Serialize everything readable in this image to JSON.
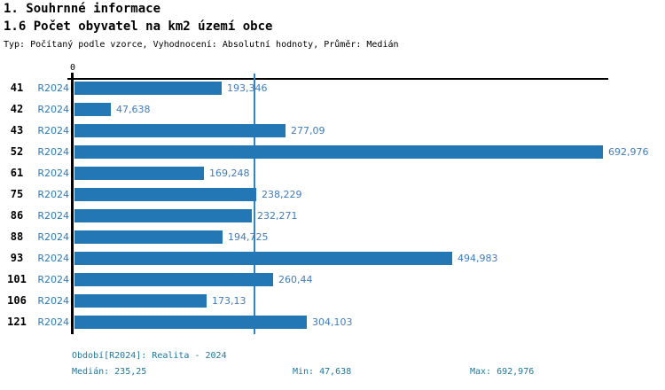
{
  "header": {
    "title1": "1. Souhrnné informace",
    "title2": "1.6 Počet obyvatel na km2 území obce",
    "subtitle": "Typ: Počítaný podle vzorce, Vyhodnocení: Absolutní hodnoty, Průměr: Medián"
  },
  "chart_data": {
    "type": "bar",
    "orientation": "horizontal",
    "zero_tick_label": "0",
    "series_label": "R2024",
    "categories": [
      "41",
      "42",
      "43",
      "52",
      "61",
      "75",
      "86",
      "88",
      "93",
      "101",
      "106",
      "121"
    ],
    "values": [
      193.346,
      47.638,
      277.09,
      692.976,
      169.248,
      238.229,
      232.271,
      194.725,
      494.983,
      260.44,
      173.13,
      304.103
    ],
    "value_labels": [
      "193,346",
      "47,638",
      "277,09",
      "692,976",
      "169,248",
      "238,229",
      "232,271",
      "194,725",
      "494,983",
      "260,44",
      "173,13",
      "304,103"
    ],
    "median_value": 235.25,
    "xlim": [
      0,
      692.976
    ],
    "grid": false,
    "legend": false,
    "bar_color": "#2277b4",
    "median_line_color": "#2e86c0",
    "value_label_color": "#417cbf",
    "series_label_color": "#2b7ab9"
  },
  "footer": {
    "period": "Období[R2024]: Realita - 2024",
    "median": "Medián: 235,25",
    "min": "Min: 47,638",
    "max": "Max: 692,976"
  }
}
